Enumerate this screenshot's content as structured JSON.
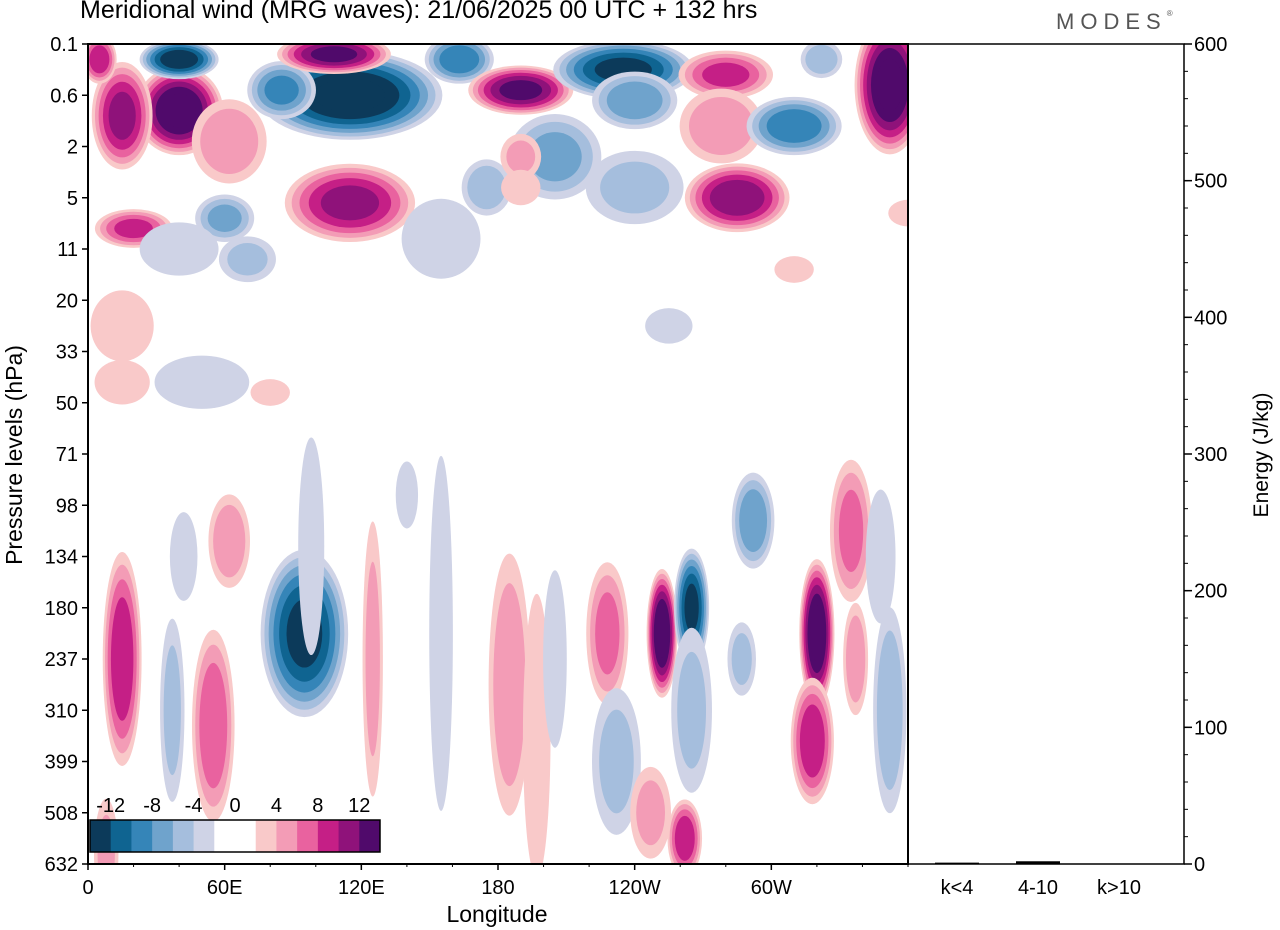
{
  "header": {
    "title": "Meridional wind (MRG waves):  21/06/2025  00 UTC  + 132 hrs",
    "brand": "MODES",
    "brand_mark": "®"
  },
  "palette": {
    "neg": [
      "#0c3a5a",
      "#0f6491",
      "#3585b8",
      "#6fa3cc",
      "#a5bedd",
      "#cfd3e6"
    ],
    "white": "#ffffff",
    "pos": [
      "#f9c9c9",
      "#f39cb6",
      "#e9629f",
      "#c51f86",
      "#8f127a",
      "#500a6b"
    ]
  },
  "chart_data": [
    {
      "type": "heatmap",
      "title": "Meridional wind (MRG waves):  21/06/2025  00 UTC  + 132 hrs",
      "xlabel": "Longitude",
      "ylabel": "Pressure levels (hPa)",
      "x_ticks": [
        "0",
        "60E",
        "120E",
        "180",
        "120W",
        "60W"
      ],
      "x_tick_values": [
        0,
        60,
        120,
        180,
        240,
        300
      ],
      "xlim": [
        0,
        360
      ],
      "y_ticks": [
        "0.1",
        "0.6",
        "2",
        "5",
        "11",
        "20",
        "33",
        "50",
        "71",
        "98",
        "134",
        "180",
        "237",
        "310",
        "399",
        "508",
        "632"
      ],
      "y_scale": "model levels, top to bottom",
      "colorbar": {
        "ticks": [
          "-12",
          "-8",
          "-4",
          "0",
          "4",
          "8",
          "12"
        ],
        "levels": [
          -14,
          -12,
          -10,
          -8,
          -6,
          -4,
          -2,
          2,
          4,
          6,
          8,
          10,
          12,
          14
        ],
        "placement": "bottom-left inside plot"
      },
      "features": [
        {
          "lon": 40,
          "level": 1.3,
          "value": 14,
          "wlon": 20,
          "wlev": 0.9
        },
        {
          "lon": 15,
          "level": 1.4,
          "value": 10,
          "wlon": 14,
          "wlev": 1.1
        },
        {
          "lon": 62,
          "level": 1.9,
          "value": 5,
          "wlon": 18,
          "wlev": 0.9
        },
        {
          "lon": 5,
          "level": 0.3,
          "value": 9,
          "wlon": 8,
          "wlev": 0.5
        },
        {
          "lon": 40,
          "level": 0.3,
          "value": -13,
          "wlon": 18,
          "wlev": 0.4
        },
        {
          "lon": 115,
          "level": 1.0,
          "value": -14,
          "wlon": 42,
          "wlev": 0.9
        },
        {
          "lon": 85,
          "level": 0.9,
          "value": -8,
          "wlon": 16,
          "wlev": 0.6
        },
        {
          "lon": 108,
          "level": 0.2,
          "value": 12,
          "wlon": 26,
          "wlev": 0.4
        },
        {
          "lon": 163,
          "level": 0.3,
          "value": -9,
          "wlon": 16,
          "wlev": 0.5
        },
        {
          "lon": 190,
          "level": 0.9,
          "value": 12,
          "wlon": 24,
          "wlev": 0.5
        },
        {
          "lon": 235,
          "level": 0.5,
          "value": -12,
          "wlon": 32,
          "wlev": 0.6
        },
        {
          "lon": 240,
          "level": 1.1,
          "value": -7,
          "wlon": 20,
          "wlev": 0.6
        },
        {
          "lon": 205,
          "level": 2.2,
          "value": -6,
          "wlon": 22,
          "wlev": 0.9
        },
        {
          "lon": 240,
          "level": 2.8,
          "value": -4,
          "wlon": 24,
          "wlev": 0.8
        },
        {
          "lon": 280,
          "level": 0.6,
          "value": 8,
          "wlon": 22,
          "wlev": 0.5
        },
        {
          "lon": 278,
          "level": 1.6,
          "value": 5,
          "wlon": 20,
          "wlev": 0.8
        },
        {
          "lon": 310,
          "level": 1.6,
          "value": -9,
          "wlon": 22,
          "wlev": 0.6
        },
        {
          "lon": 322,
          "level": 0.3,
          "value": -5,
          "wlon": 10,
          "wlev": 0.4
        },
        {
          "lon": 352,
          "level": 0.8,
          "value": 14,
          "wlon": 16,
          "wlev": 1.4
        },
        {
          "lon": 285,
          "level": 3.0,
          "value": 11,
          "wlon": 24,
          "wlev": 0.7
        },
        {
          "lon": 115,
          "level": 3.1,
          "value": 10,
          "wlon": 30,
          "wlev": 0.8
        },
        {
          "lon": 175,
          "level": 2.8,
          "value": -5,
          "wlon": 12,
          "wlev": 0.6
        },
        {
          "lon": 190,
          "level": 2.2,
          "value": 4,
          "wlon": 10,
          "wlev": 0.5
        },
        {
          "lon": 190,
          "level": 2.8,
          "value": 3,
          "wlon": 10,
          "wlev": 0.4
        },
        {
          "lon": 60,
          "level": 3.4,
          "value": -6,
          "wlon": 14,
          "wlev": 0.5
        },
        {
          "lon": 20,
          "level": 3.6,
          "value": 8,
          "wlon": 18,
          "wlev": 0.4
        },
        {
          "lon": 40,
          "level": 4.0,
          "value": -3,
          "wlon": 20,
          "wlev": 0.6
        },
        {
          "lon": 70,
          "level": 4.2,
          "value": -4,
          "wlon": 14,
          "wlev": 0.5
        },
        {
          "lon": 155,
          "level": 3.8,
          "value": -3,
          "wlon": 20,
          "wlev": 0.9
        },
        {
          "lon": 360,
          "level": 3.3,
          "value": 3,
          "wlon": 10,
          "wlev": 0.3
        },
        {
          "lon": 310,
          "level": 4.4,
          "value": 3,
          "wlon": 10,
          "wlev": 0.3
        },
        {
          "lon": 15,
          "level": 5.5,
          "value": 3,
          "wlon": 16,
          "wlev": 0.8
        },
        {
          "lon": 15,
          "level": 6.6,
          "value": 3,
          "wlon": 14,
          "wlev": 0.5
        },
        {
          "lon": 50,
          "level": 6.6,
          "value": -3,
          "wlon": 24,
          "wlev": 0.6
        },
        {
          "lon": 80,
          "level": 6.8,
          "value": 3,
          "wlon": 10,
          "wlev": 0.3
        },
        {
          "lon": 255,
          "level": 5.5,
          "value": -3,
          "wlon": 12,
          "wlev": 0.4
        },
        {
          "lon": 15,
          "level": 12,
          "value": 9,
          "wlon": 9,
          "wlev": 2.2
        },
        {
          "lon": 42,
          "level": 10,
          "value": -3,
          "wlon": 7,
          "wlev": 1.0
        },
        {
          "lon": 37,
          "level": 13,
          "value": -4,
          "wlon": 6,
          "wlev": 2.0
        },
        {
          "lon": 62,
          "level": 9.7,
          "value": 5,
          "wlon": 10,
          "wlev": 1.0
        },
        {
          "lon": 55,
          "level": 13.3,
          "value": 7,
          "wlon": 10,
          "wlev": 2.0
        },
        {
          "lon": 95,
          "level": 11.5,
          "value": -12,
          "wlon": 20,
          "wlev": 1.7
        },
        {
          "lon": 98,
          "level": 9.8,
          "value": -2,
          "wlon": 7,
          "wlev": 2.6
        },
        {
          "lon": 125,
          "level": 12,
          "value": 4,
          "wlon": 5,
          "wlev": 3.0
        },
        {
          "lon": 155,
          "level": 11.5,
          "value": -3,
          "wlon": 6,
          "wlev": 4.0
        },
        {
          "lon": 185,
          "level": 12.5,
          "value": 5,
          "wlon": 10,
          "wlev": 2.8
        },
        {
          "lon": 197,
          "level": 13.5,
          "value": 3,
          "wlon": 7,
          "wlev": 3.2
        },
        {
          "lon": 205,
          "level": 12,
          "value": -3,
          "wlon": 6,
          "wlev": 2.0
        },
        {
          "lon": 228,
          "level": 11.5,
          "value": 6,
          "wlon": 10,
          "wlev": 1.5
        },
        {
          "lon": 232,
          "level": 14,
          "value": -4,
          "wlon": 12,
          "wlev": 1.6
        },
        {
          "lon": 252,
          "level": 11.5,
          "value": 14,
          "wlon": 7,
          "wlev": 1.3
        },
        {
          "lon": 265,
          "level": 11,
          "value": -12,
          "wlon": 8,
          "wlev": 1.2
        },
        {
          "lon": 265,
          "level": 13,
          "value": -4,
          "wlon": 10,
          "wlev": 1.8
        },
        {
          "lon": 262,
          "level": 15.5,
          "value": 9,
          "wlon": 8,
          "wlev": 0.8
        },
        {
          "lon": 247,
          "level": 15.0,
          "value": 4,
          "wlon": 10,
          "wlev": 1.0
        },
        {
          "lon": 287,
          "level": 12.0,
          "value": -4,
          "wlon": 7,
          "wlev": 0.8
        },
        {
          "lon": 292,
          "level": 9.3,
          "value": -7,
          "wlon": 10,
          "wlev": 1.0
        },
        {
          "lon": 320,
          "level": 11.5,
          "value": 14,
          "wlon": 8,
          "wlev": 1.5
        },
        {
          "lon": 318,
          "level": 13.6,
          "value": 9,
          "wlon": 10,
          "wlev": 1.3
        },
        {
          "lon": 337,
          "level": 12.0,
          "value": 5,
          "wlon": 6,
          "wlev": 1.2
        },
        {
          "lon": 352,
          "level": 13.0,
          "value": -5,
          "wlon": 8,
          "wlev": 2.2
        },
        {
          "lon": 335,
          "level": 9.5,
          "value": 6,
          "wlon": 10,
          "wlev": 1.5
        },
        {
          "lon": 348,
          "level": 10.0,
          "value": -2,
          "wlon": 8,
          "wlev": 1.6
        },
        {
          "lon": 8,
          "level": 15.8,
          "value": 4,
          "wlon": 6,
          "wlev": 1.2
        },
        {
          "lon": 140,
          "level": 8.8,
          "value": -2,
          "wlon": 6,
          "wlev": 0.8
        }
      ]
    },
    {
      "type": "bar",
      "ylabel": "Energy (J/kg)",
      "categories": [
        "k<4",
        "4-10",
        "k>10"
      ],
      "values": [
        1,
        2,
        0
      ],
      "ylim": [
        0,
        600
      ],
      "y_ticks": [
        "0",
        "100",
        "200",
        "300",
        "400",
        "500",
        "600"
      ]
    }
  ]
}
